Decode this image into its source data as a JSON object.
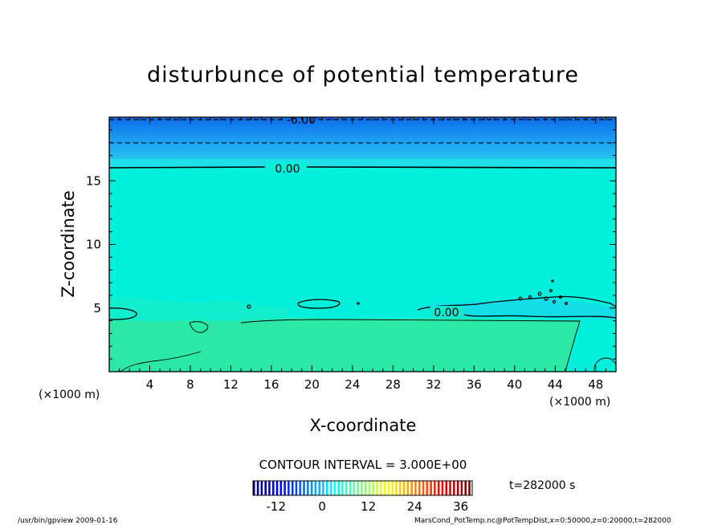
{
  "chart_data": {
    "type": "heatmap",
    "title": "disturbunce of potential temperature",
    "xlabel": "X-coordinate",
    "ylabel": "Z-coordinate",
    "x_unit": "(×1000 m)",
    "y_unit": "(×1000 m)",
    "xlim": [
      0,
      50
    ],
    "ylim": [
      0,
      20
    ],
    "x_ticks": [
      4,
      8,
      12,
      16,
      20,
      24,
      28,
      32,
      36,
      40,
      44,
      48
    ],
    "y_ticks": [
      5,
      10,
      15
    ],
    "contour_interval_label": "CONTOUR INTERVAL = 3.000E+00",
    "contour_labels": [
      "-6.00",
      "0.00",
      "0.00"
    ],
    "time_label": "t=282000 s",
    "colorbar": {
      "tick_labels": [
        "-12",
        "0",
        "12",
        "24",
        "36"
      ],
      "tick_values": [
        -12,
        0,
        12,
        24,
        36
      ],
      "range": [
        -18,
        39
      ]
    },
    "regions": [
      {
        "z_range": [
          19.5,
          20
        ],
        "value": -6
      },
      {
        "z_range": [
          18,
          19.5
        ],
        "value": -4
      },
      {
        "z_range": [
          16,
          18
        ],
        "value": -2
      },
      {
        "z_range": [
          4,
          16
        ],
        "value": 0
      },
      {
        "z_range": [
          0,
          4
        ],
        "value": 1.5
      }
    ]
  },
  "footer": {
    "left": "/usr/bin/gpview   2009-01-16",
    "right": "MarsCond_PotTemp.nc@PotTempDist,x=0:50000,z=0:20000,t=282000"
  }
}
